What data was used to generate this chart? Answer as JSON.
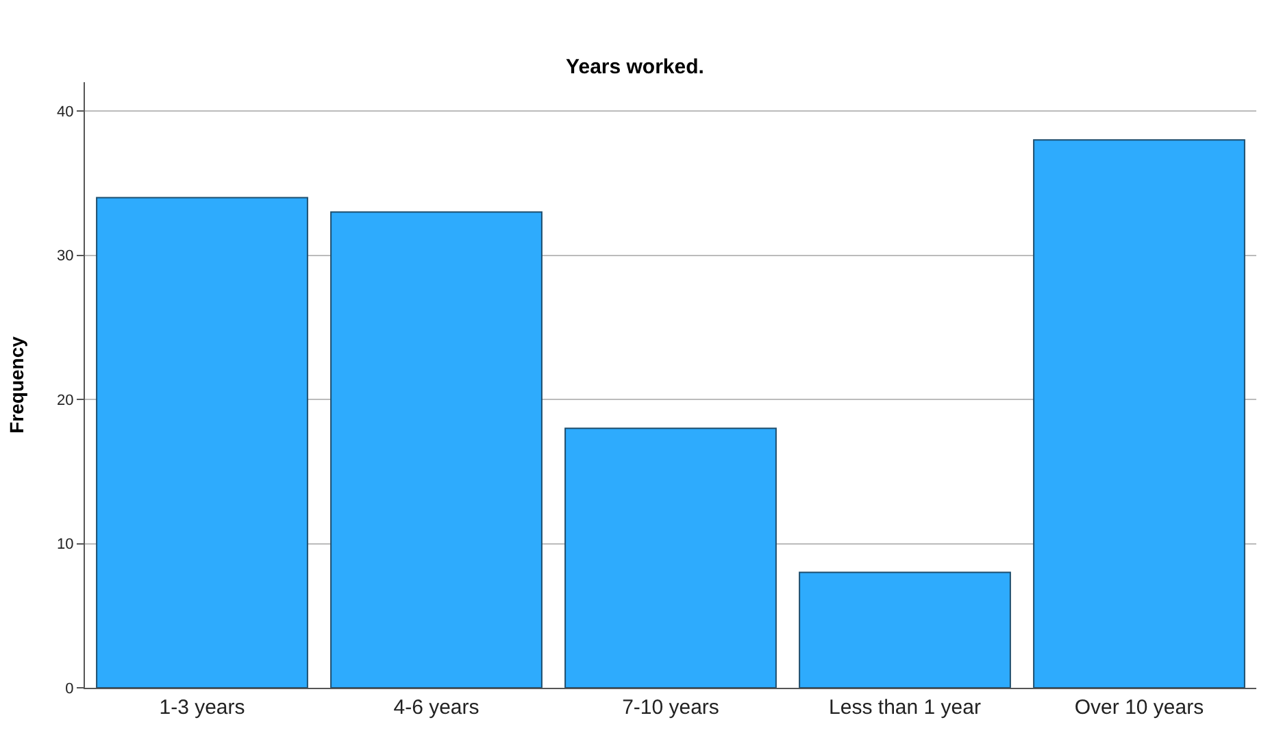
{
  "chart_data": {
    "type": "bar",
    "title": "Years worked.",
    "ylabel": "Frequency",
    "categories": [
      "1-3 years",
      "4-6 years",
      "7-10 years",
      "Less than 1 year",
      "Over 10 years"
    ],
    "values": [
      34,
      33,
      18,
      8,
      38
    ],
    "color": "#2eabfd",
    "ylim": [
      0,
      42
    ],
    "yticks": [
      0,
      10,
      20,
      30,
      40
    ],
    "grid": "y"
  }
}
